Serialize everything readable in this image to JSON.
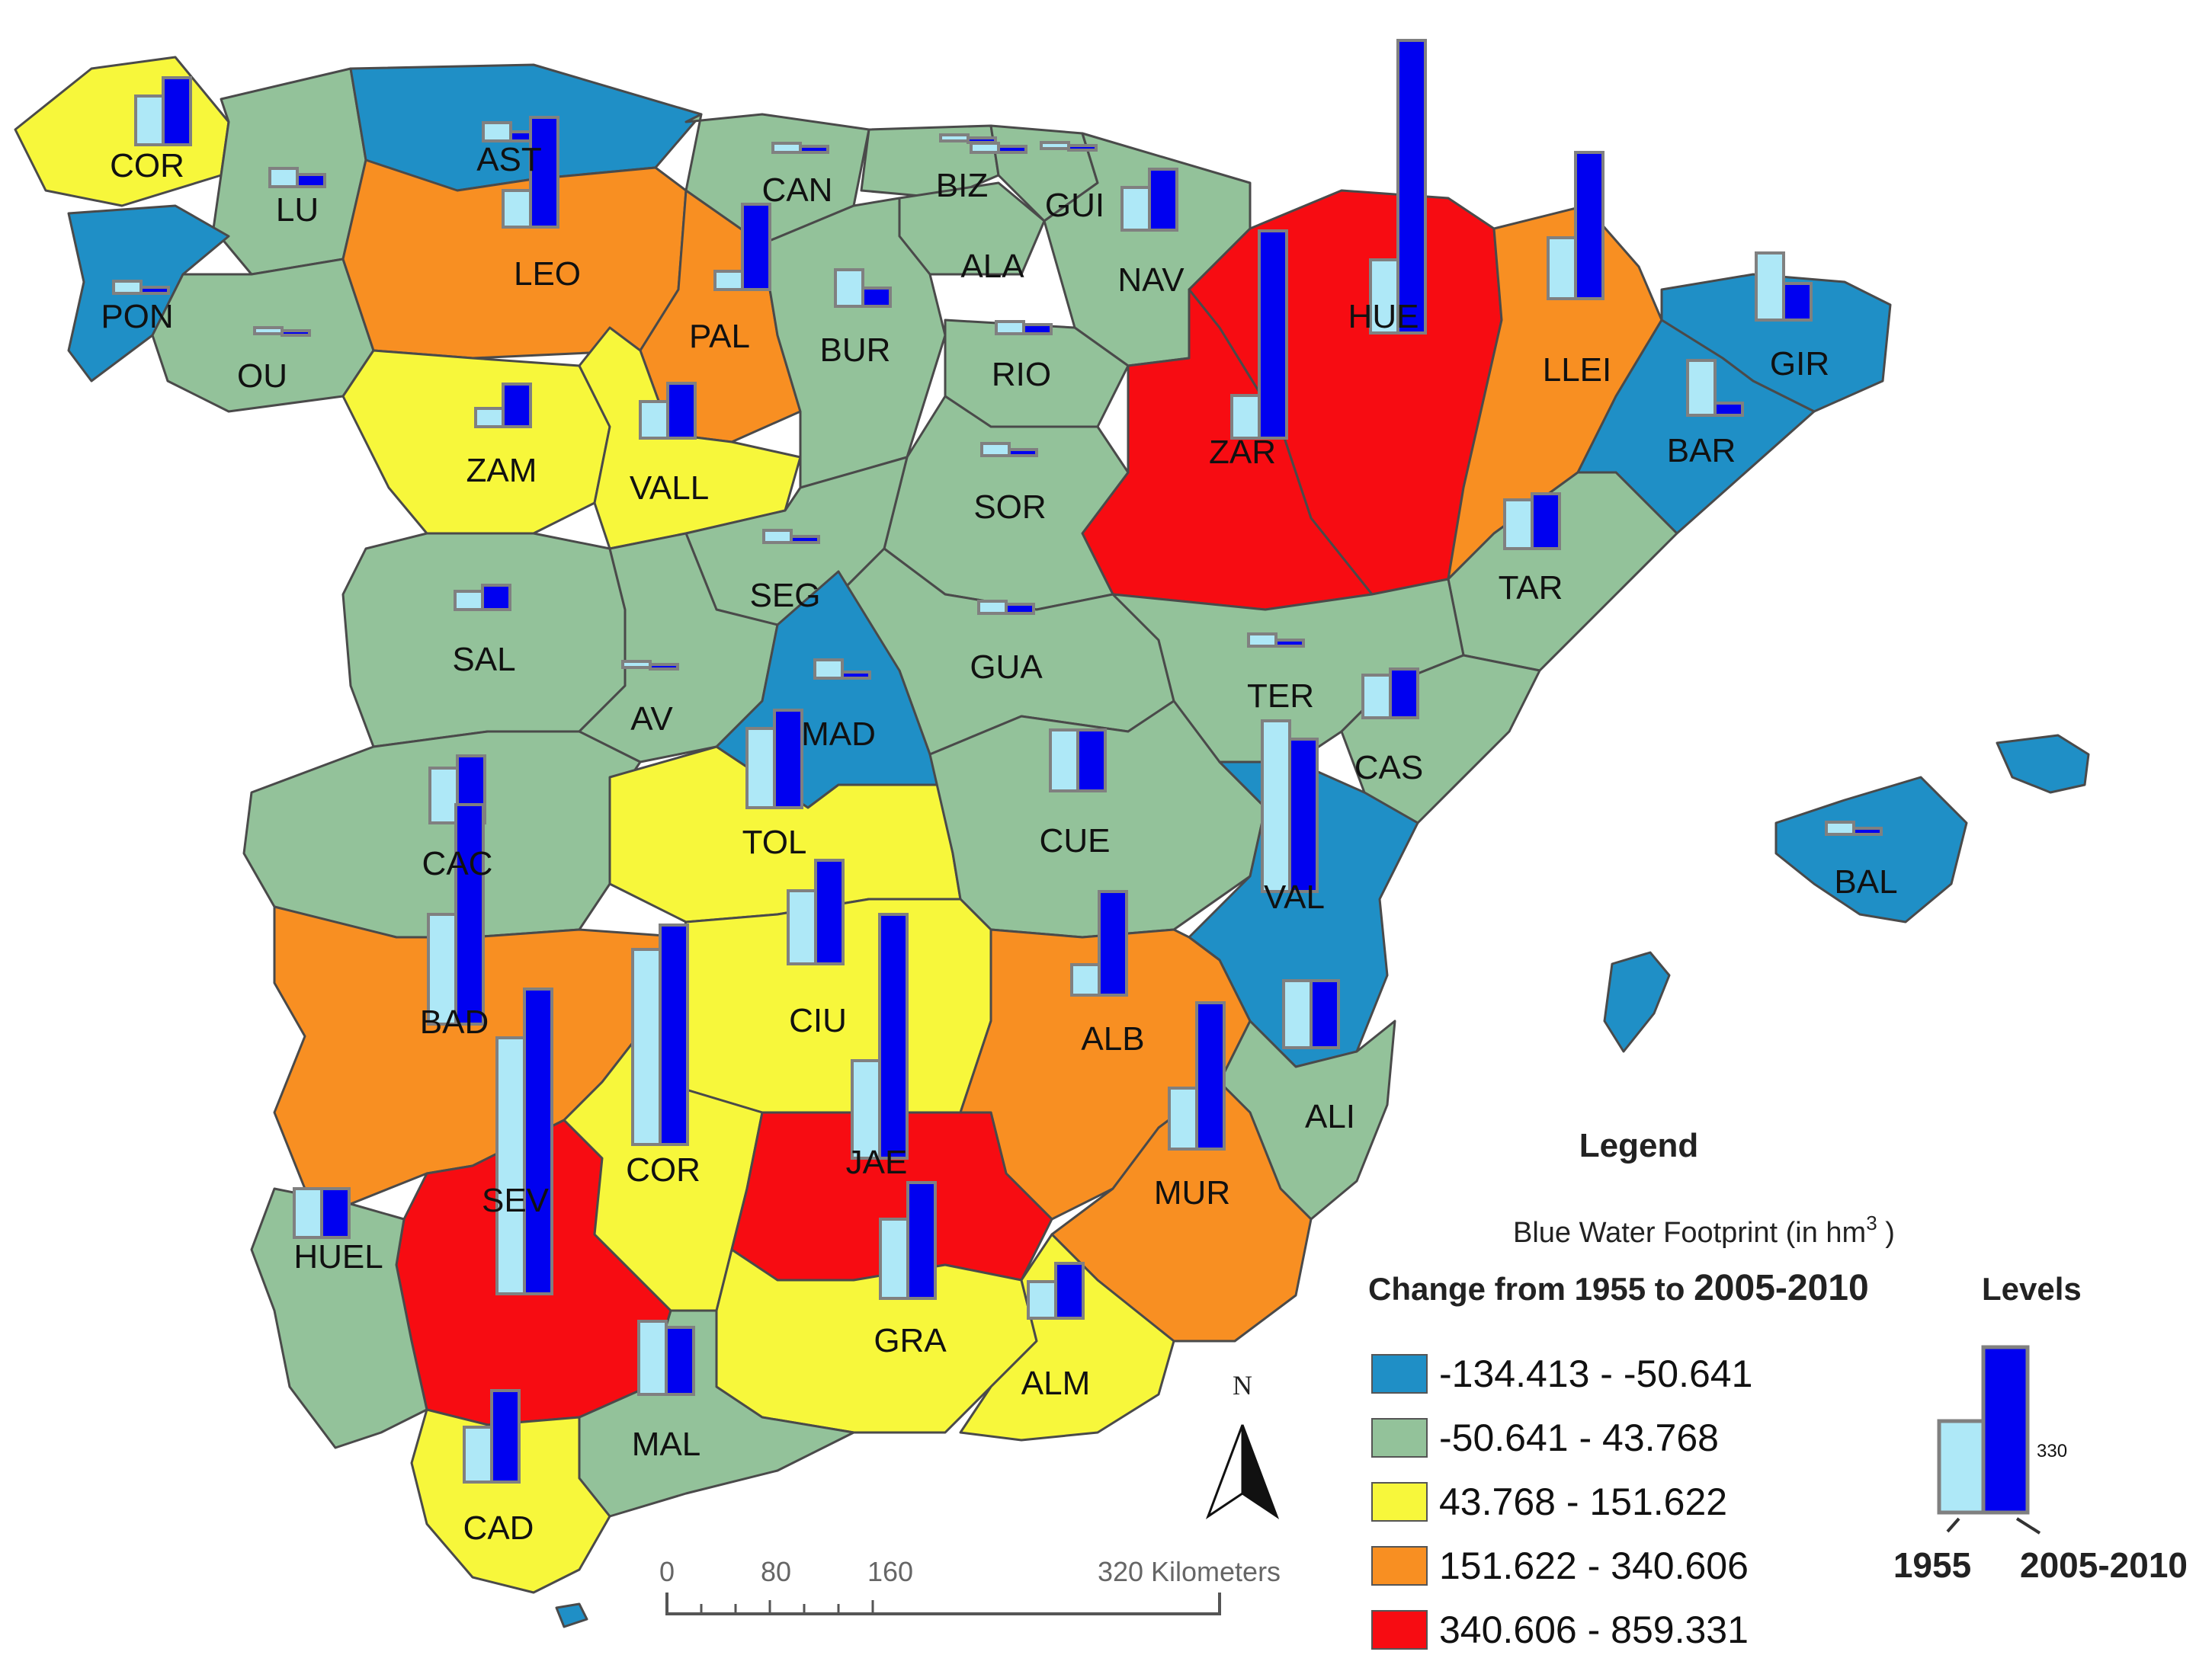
{
  "colors": {
    "class1": "#1f8fc6",
    "class2": "#93c29a",
    "class3": "#f7f73b",
    "class4": "#f88f22",
    "class5": "#f70c12",
    "bar1955": "#aee8f7",
    "bar2010": "#0000f0",
    "barFrame": "#808080",
    "island": "#1f8fc6"
  },
  "legend": {
    "title": "Legend",
    "subtitle_prefix": "Blue Water Footprint (in hm",
    "subtitle_sup": "3",
    "subtitle_suffix": " )",
    "change_prefix": "Change from 1955 to ",
    "change_bold": "2005-2010",
    "levels_label": "Levels",
    "classes": [
      {
        "range": "-134.413  -  -50.641",
        "color": "#1f8fc6"
      },
      {
        "range": "-50.641  -  43.768",
        "color": "#93c29a"
      },
      {
        "range": "43.768  -  151.622",
        "color": "#f7f73b"
      },
      {
        "range": "151.622  -  340.606",
        "color": "#f88f22"
      },
      {
        "range": "340.606  -  859.331",
        "color": "#f70c12"
      }
    ],
    "sample_value_label": "330",
    "year1_label": "1955",
    "year2_label": "2005-2010"
  },
  "scale": {
    "ticks": [
      "0",
      "80",
      "160"
    ],
    "end_label": "320 Kilometers"
  },
  "north_label": "N",
  "provinces": [
    {
      "code": "COR",
      "class": 3,
      "v1955": 0.16,
      "v2010": 0.22
    },
    {
      "code": "LU",
      "class": 2,
      "v1955": 0.06,
      "v2010": 0.04
    },
    {
      "code": "AST",
      "class": 1,
      "v1955": 0.06,
      "v2010": 0.03
    },
    {
      "code": "CAN",
      "class": 2,
      "v1955": 0.03,
      "v2010": 0.02
    },
    {
      "code": "BIZ",
      "class": 2,
      "v1955": 0.02,
      "v2010": 0.01
    },
    {
      "code": "GUI",
      "class": 2,
      "v1955": 0.02,
      "v2010": 0.01
    },
    {
      "code": "ALA",
      "class": 2,
      "v1955": 0.03,
      "v2010": 0.02
    },
    {
      "code": "NAV",
      "class": 2,
      "v1955": 0.14,
      "v2010": 0.2
    },
    {
      "code": "PON",
      "class": 1,
      "v1955": 0.04,
      "v2010": 0.02
    },
    {
      "code": "OU",
      "class": 2,
      "v1955": 0.02,
      "v2010": 0.01
    },
    {
      "code": "LEO",
      "class": 4,
      "v1955": 0.12,
      "v2010": 0.36
    },
    {
      "code": "PAL",
      "class": 4,
      "v1955": 0.06,
      "v2010": 0.28
    },
    {
      "code": "BUR",
      "class": 2,
      "v1955": 0.12,
      "v2010": 0.06
    },
    {
      "code": "RIO",
      "class": 2,
      "v1955": 0.04,
      "v2010": 0.03
    },
    {
      "code": "HUE",
      "class": 5,
      "v1955": 0.24,
      "v2010": 0.96
    },
    {
      "code": "LLEI",
      "class": 4,
      "v1955": 0.2,
      "v2010": 0.48
    },
    {
      "code": "GIR",
      "class": 1,
      "v1955": 0.22,
      "v2010": 0.12
    },
    {
      "code": "ZAR",
      "class": 5,
      "v1955": 0.14,
      "v2010": 0.68
    },
    {
      "code": "BAR",
      "class": 1,
      "v1955": 0.18,
      "v2010": 0.04
    },
    {
      "code": "ZAM",
      "class": 3,
      "v1955": 0.06,
      "v2010": 0.14
    },
    {
      "code": "VALL",
      "class": 3,
      "v1955": 0.12,
      "v2010": 0.18
    },
    {
      "code": "SOR",
      "class": 2,
      "v1955": 0.04,
      "v2010": 0.02
    },
    {
      "code": "SEG",
      "class": 2,
      "v1955": 0.04,
      "v2010": 0.02
    },
    {
      "code": "TAR",
      "class": 2,
      "v1955": 0.16,
      "v2010": 0.18
    },
    {
      "code": "SAL",
      "class": 2,
      "v1955": 0.06,
      "v2010": 0.08
    },
    {
      "code": "AV",
      "class": 2,
      "v1955": 0.02,
      "v2010": 0.01
    },
    {
      "code": "GUA",
      "class": 2,
      "v1955": 0.04,
      "v2010": 0.03
    },
    {
      "code": "TER",
      "class": 2,
      "v1955": 0.04,
      "v2010": 0.02
    },
    {
      "code": "MAD",
      "class": 1,
      "v1955": 0.06,
      "v2010": 0.02
    },
    {
      "code": "CAS",
      "class": 2,
      "v1955": 0.14,
      "v2010": 0.16
    },
    {
      "code": "CAC",
      "class": 2,
      "v1955": 0.18,
      "v2010": 0.22
    },
    {
      "code": "TOL",
      "class": 3,
      "v1955": 0.26,
      "v2010": 0.32
    },
    {
      "code": "CUE",
      "class": 2,
      "v1955": 0.2,
      "v2010": 0.2
    },
    {
      "code": "VAL",
      "class": 1,
      "v1955": 0.56,
      "v2010": 0.5
    },
    {
      "code": "BAD",
      "class": 4,
      "v1955": 0.36,
      "v2010": 0.72
    },
    {
      "code": "CIU",
      "class": 3,
      "v1955": 0.24,
      "v2010": 0.34
    },
    {
      "code": "ALB",
      "class": 4,
      "v1955": 0.1,
      "v2010": 0.34
    },
    {
      "code": "ALI",
      "class": 2,
      "v1955": 0.22,
      "v2010": 0.22
    },
    {
      "code": "SEV",
      "class": 5,
      "v1955": 0.84,
      "v2010": 1.0
    },
    {
      "code": "COR",
      "class": 3,
      "v1955": 0.64,
      "v2010": 0.72
    },
    {
      "code": "JAE",
      "class": 5,
      "v1955": 0.32,
      "v2010": 0.8
    },
    {
      "code": "MUR",
      "class": 4,
      "v1955": 0.2,
      "v2010": 0.48
    },
    {
      "code": "HUEL",
      "class": 2,
      "v1955": 0.16,
      "v2010": 0.16
    },
    {
      "code": "GRA",
      "class": 3,
      "v1955": 0.26,
      "v2010": 0.38
    },
    {
      "code": "ALM",
      "class": 3,
      "v1955": 0.12,
      "v2010": 0.18
    },
    {
      "code": "MAL",
      "class": 2,
      "v1955": 0.24,
      "v2010": 0.22
    },
    {
      "code": "CAD",
      "class": 3,
      "v1955": 0.18,
      "v2010": 0.3
    },
    {
      "code": "BAL",
      "class": 1,
      "v1955": 0.04,
      "v2010": 0.02
    }
  ]
}
